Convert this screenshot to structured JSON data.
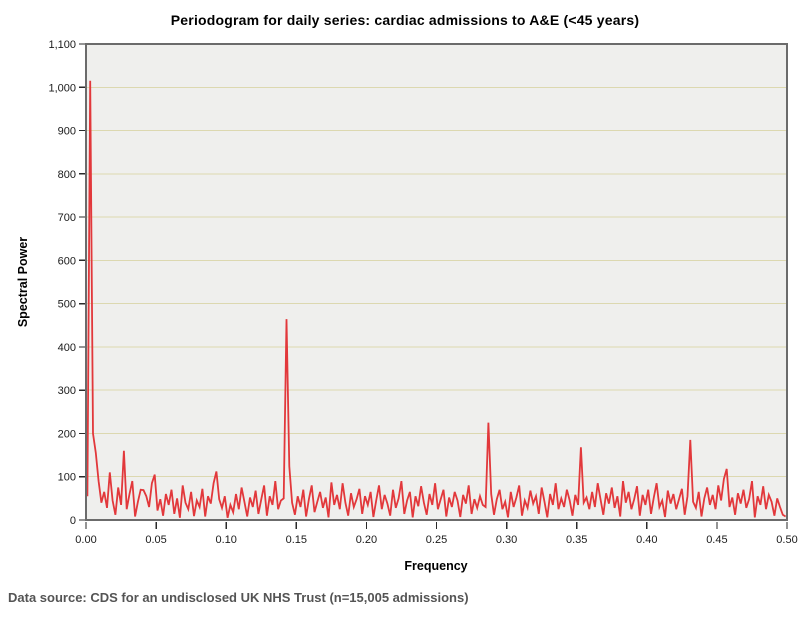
{
  "chart": {
    "title": "Periodogram for daily series: cardiac admissions to A&E (<45 years)",
    "footer": "Data source: CDS for an undisclosed UK NHS Trust (n=15,005 admissions)"
  },
  "chart_data": {
    "type": "line",
    "title": "Periodogram for daily series: cardiac admissions to A&E (<45 years)",
    "xlabel": "Frequency",
    "ylabel": "Spectral Power",
    "xlim": [
      0.0,
      0.5
    ],
    "ylim": [
      0,
      1100
    ],
    "grid": "horizontal",
    "legend": "none",
    "x_tick_values": [
      0.0,
      0.05,
      0.1,
      0.15,
      0.2,
      0.25,
      0.3,
      0.35,
      0.4,
      0.45,
      0.5
    ],
    "x_tick_labels": [
      "0.00",
      "0.05",
      "0.10",
      "0.15",
      "0.20",
      "0.25",
      "0.30",
      "0.35",
      "0.40",
      "0.45",
      "0.50"
    ],
    "y_tick_values": [
      0,
      100,
      200,
      300,
      400,
      500,
      600,
      700,
      800,
      900,
      1000,
      1100
    ],
    "y_tick_labels": [
      "0",
      "100",
      "200",
      "300",
      "400",
      "500",
      "600",
      "700",
      "800",
      "900",
      "1,000",
      "1,100"
    ],
    "colors": {
      "series": "#e2383b",
      "plot_background": "#efefed",
      "gridline": "#dcd8b0",
      "frame": "#6b6b6b",
      "tick": "#2a2a2a"
    },
    "notable_peaks": [
      {
        "frequency": 0.003,
        "power": 1015
      },
      {
        "frequency": 0.143,
        "power": 464
      },
      {
        "frequency": 0.287,
        "power": 225
      },
      {
        "frequency": 0.431,
        "power": 185
      },
      {
        "frequency": 0.353,
        "power": 168
      },
      {
        "frequency": 0.027,
        "power": 160
      },
      {
        "frequency": 0.007,
        "power": 155
      },
      {
        "frequency": 0.005,
        "power": 200
      },
      {
        "frequency": 0.457,
        "power": 118
      }
    ],
    "x_start": 0.001,
    "x_step": 0.002,
    "values": [
      55,
      1015,
      200,
      155,
      90,
      40,
      65,
      28,
      110,
      45,
      12,
      75,
      35,
      160,
      25,
      60,
      90,
      8,
      42,
      70,
      69,
      55,
      30,
      85,
      105,
      22,
      48,
      10,
      60,
      35,
      70,
      14,
      50,
      5,
      80,
      40,
      25,
      65,
      9,
      45,
      30,
      72,
      8,
      55,
      38,
      85,
      112,
      48,
      28,
      55,
      5,
      35,
      18,
      60,
      25,
      75,
      42,
      8,
      52,
      30,
      68,
      14,
      48,
      80,
      10,
      55,
      35,
      90,
      25,
      45,
      50,
      464,
      124,
      40,
      12,
      55,
      30,
      70,
      8,
      48,
      80,
      18,
      42,
      65,
      28,
      52,
      6,
      87,
      35,
      58,
      25,
      85,
      40,
      10,
      62,
      30,
      48,
      72,
      14,
      55,
      35,
      65,
      7,
      45,
      80,
      25,
      58,
      38,
      10,
      70,
      28,
      50,
      90,
      14,
      45,
      65,
      6,
      55,
      32,
      78,
      40,
      12,
      60,
      35,
      85,
      25,
      48,
      70,
      8,
      52,
      30,
      65,
      45,
      7,
      58,
      38,
      80,
      14,
      48,
      28,
      55,
      35,
      30,
      225,
      60,
      12,
      48,
      70,
      25,
      42,
      6,
      65,
      30,
      52,
      80,
      10,
      45,
      28,
      68,
      38,
      55,
      14,
      75,
      42,
      6,
      60,
      35,
      85,
      25,
      50,
      30,
      70,
      45,
      10,
      58,
      35,
      168,
      40,
      52,
      25,
      65,
      30,
      85,
      48,
      12,
      62,
      38,
      75,
      28,
      55,
      8,
      90,
      40,
      65,
      25,
      48,
      78,
      10,
      58,
      35,
      70,
      14,
      52,
      85,
      30,
      45,
      7,
      68,
      38,
      60,
      25,
      48,
      72,
      12,
      55,
      185,
      42,
      28,
      65,
      8,
      50,
      75,
      35,
      58,
      25,
      80,
      45,
      95,
      118,
      30,
      52,
      12,
      62,
      38,
      70,
      28,
      48,
      90,
      6,
      55,
      35,
      78,
      25,
      58,
      42,
      10,
      50,
      30,
      12,
      8
    ]
  }
}
